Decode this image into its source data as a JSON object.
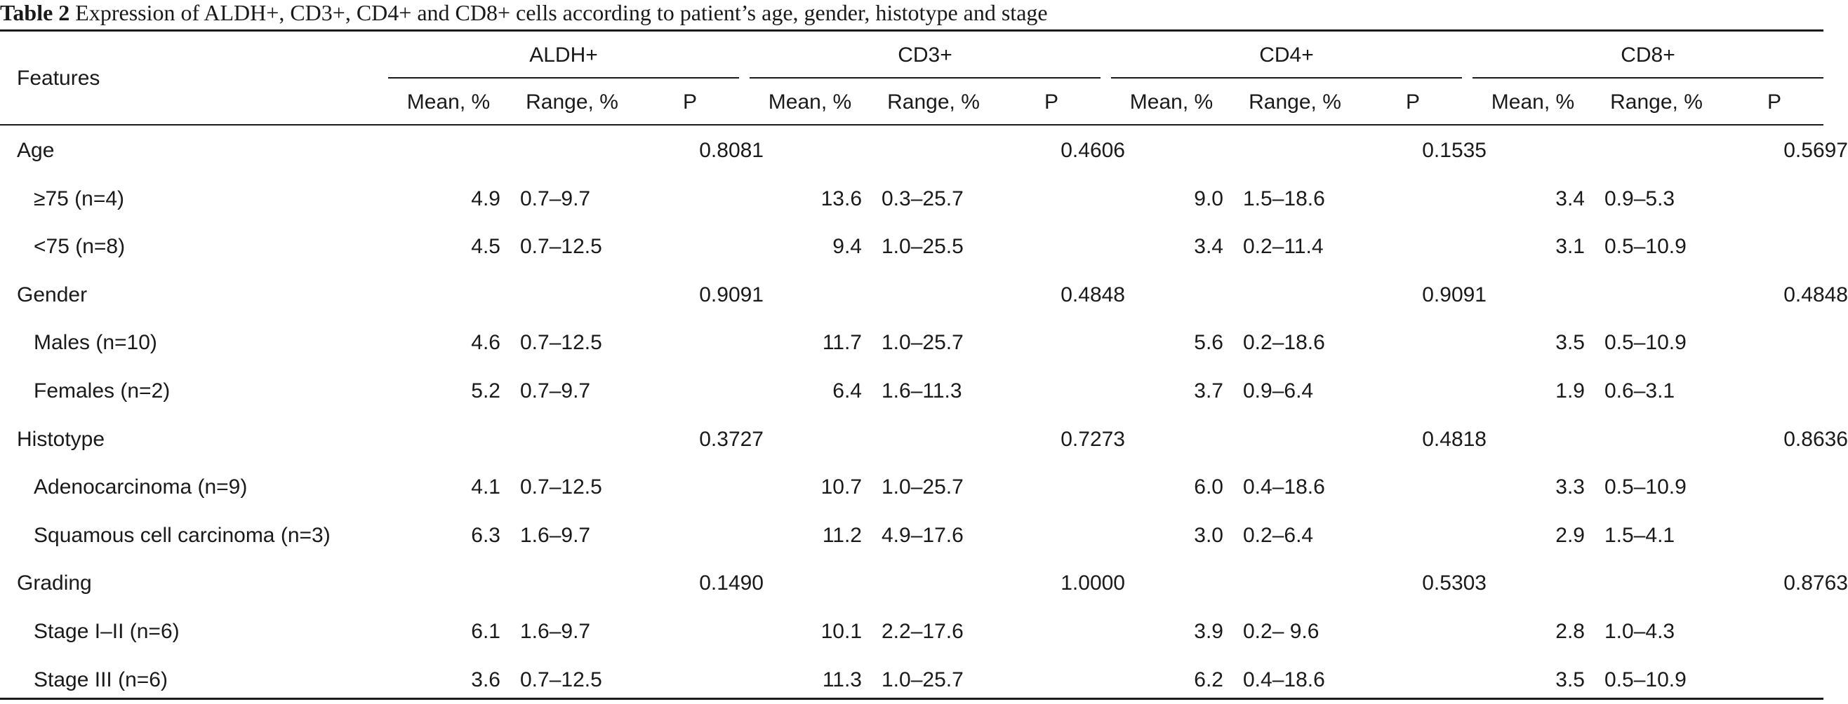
{
  "caption": {
    "label": "Table 2",
    "text": "Expression of ALDH+, CD3+, CD4+ and CD8+ cells according to patient’s age, gender, histotype and stage"
  },
  "table": {
    "features_header": "Features",
    "groups": [
      "ALDH+",
      "CD3+",
      "CD4+",
      "CD8+"
    ],
    "subheaders": [
      "Mean, %",
      "Range, %",
      "P"
    ],
    "rows": [
      {
        "label": "Age",
        "indent": false,
        "cells": [
          "",
          "",
          "0.8081",
          "",
          "",
          "0.4606",
          "",
          "",
          "0.1535",
          "",
          "",
          "0.5697"
        ]
      },
      {
        "label": "≥75 (n=4)",
        "indent": true,
        "cells": [
          "4.9",
          "0.7–9.7",
          "",
          "13.6",
          "0.3–25.7",
          "",
          "9.0",
          "1.5–18.6",
          "",
          "3.4",
          "0.9–5.3",
          ""
        ]
      },
      {
        "label": "<75 (n=8)",
        "indent": true,
        "cells": [
          "4.5",
          "0.7–12.5",
          "",
          "9.4",
          "1.0–25.5",
          "",
          "3.4",
          "0.2–11.4",
          "",
          "3.1",
          "0.5–10.9",
          ""
        ]
      },
      {
        "label": "Gender",
        "indent": false,
        "cells": [
          "",
          "",
          "0.9091",
          "",
          "",
          "0.4848",
          "",
          "",
          "0.9091",
          "",
          "",
          "0.4848"
        ]
      },
      {
        "label": "Males (n=10)",
        "indent": true,
        "cells": [
          "4.6",
          "0.7–12.5",
          "",
          "11.7",
          "1.0–25.7",
          "",
          "5.6",
          "0.2–18.6",
          "",
          "3.5",
          "0.5–10.9",
          ""
        ]
      },
      {
        "label": "Females (n=2)",
        "indent": true,
        "cells": [
          "5.2",
          "0.7–9.7",
          "",
          "6.4",
          "1.6–11.3",
          "",
          "3.7",
          "0.9–6.4",
          "",
          "1.9",
          "0.6–3.1",
          ""
        ]
      },
      {
        "label": "Histotype",
        "indent": false,
        "cells": [
          "",
          "",
          "0.3727",
          "",
          "",
          "0.7273",
          "",
          "",
          "0.4818",
          "",
          "",
          "0.8636"
        ]
      },
      {
        "label": "Adenocarcinoma (n=9)",
        "indent": true,
        "cells": [
          "4.1",
          "0.7–12.5",
          "",
          "10.7",
          "1.0–25.7",
          "",
          "6.0",
          "0.4–18.6",
          "",
          "3.3",
          "0.5–10.9",
          ""
        ]
      },
      {
        "label": "Squamous cell carcinoma (n=3)",
        "indent": true,
        "cells": [
          "6.3",
          "1.6–9.7",
          "",
          "11.2",
          "4.9–17.6",
          "",
          "3.0",
          "0.2–6.4",
          "",
          "2.9",
          "1.5–4.1",
          ""
        ]
      },
      {
        "label": "Grading",
        "indent": false,
        "cells": [
          "",
          "",
          "0.1490",
          "",
          "",
          "1.0000",
          "",
          "",
          "0.5303",
          "",
          "",
          "0.8763"
        ]
      },
      {
        "label": "Stage I–II (n=6)",
        "indent": true,
        "cells": [
          "6.1",
          "1.6–9.7",
          "",
          "10.1",
          "2.2–17.6",
          "",
          "3.9",
          "0.2– 9.6",
          "",
          "2.8",
          "1.0–4.3",
          ""
        ]
      },
      {
        "label": "Stage III (n=6)",
        "indent": true,
        "cells": [
          "3.6",
          "0.7–12.5",
          "",
          "11.3",
          "1.0–25.7",
          "",
          "6.2",
          "0.4–18.6",
          "",
          "3.5",
          "0.5–10.9",
          ""
        ]
      }
    ]
  }
}
